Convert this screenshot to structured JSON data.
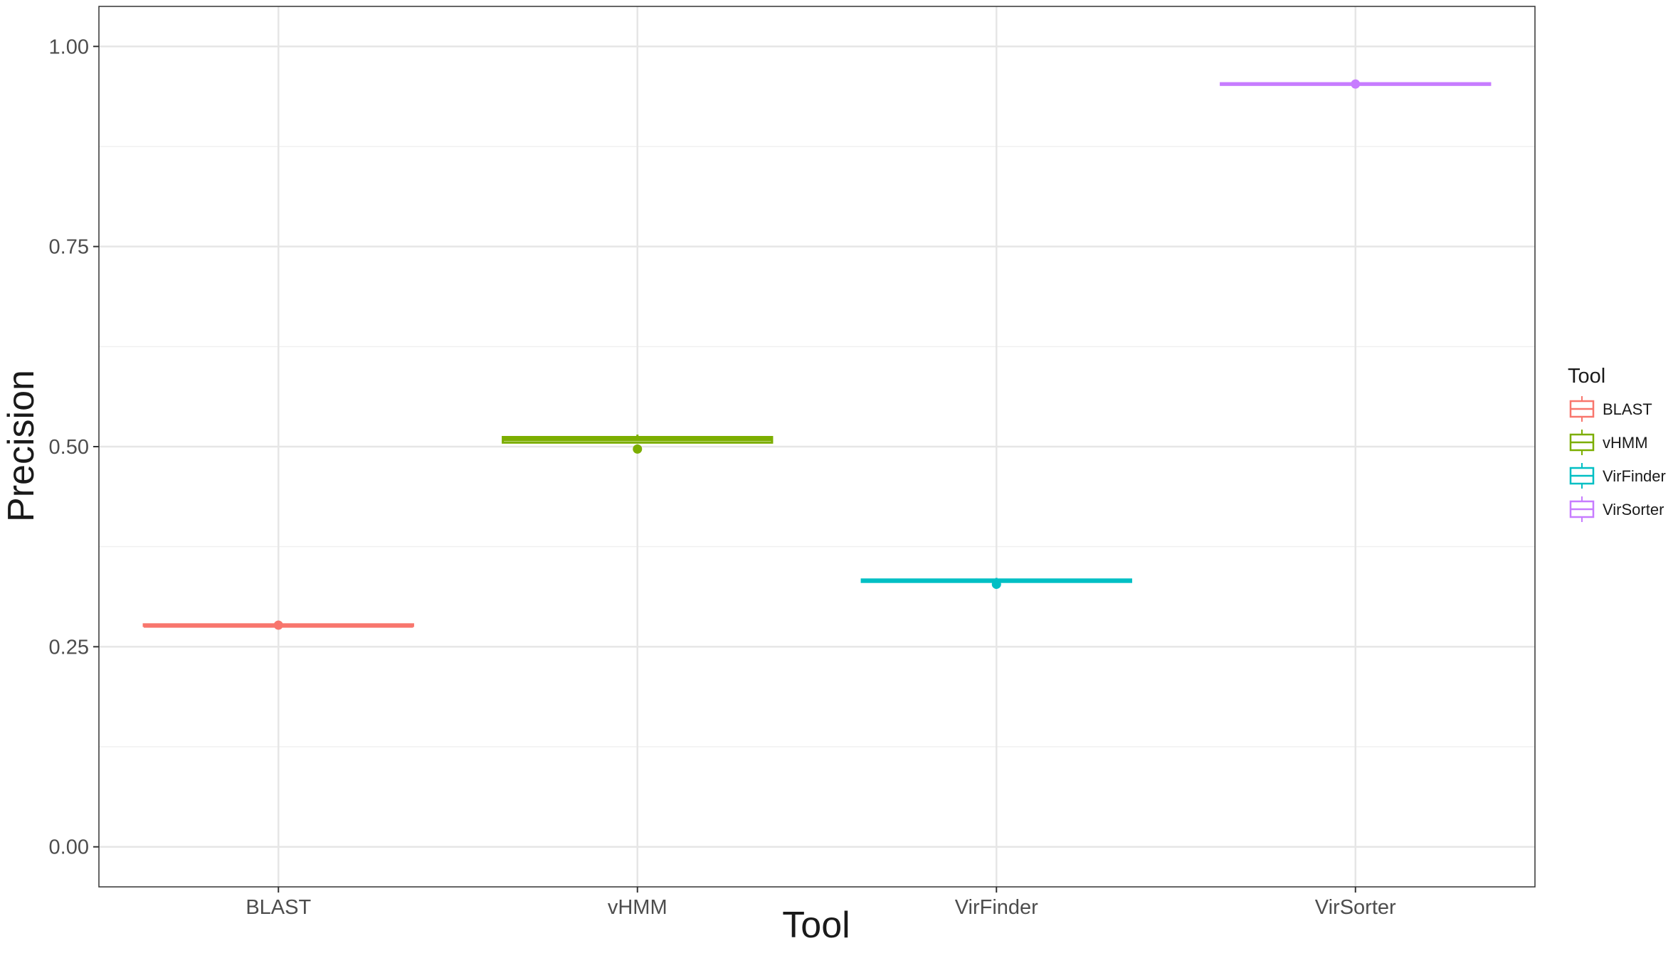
{
  "chart_data": {
    "type": "boxplot",
    "title": "",
    "xlabel": "Tool",
    "ylabel": "Precision",
    "categories": [
      "BLAST",
      "vHMM",
      "VirFinder",
      "VirSorter"
    ],
    "ylim": [
      -0.05,
      1.05
    ],
    "yticks": [
      0.0,
      0.25,
      0.5,
      0.75,
      1.0
    ],
    "ytick_labels": [
      "0.00",
      "0.25",
      "0.50",
      "0.75",
      "1.00"
    ],
    "grid": true,
    "series": [
      {
        "name": "BLAST",
        "color": "#F8766D",
        "q1": 0.276,
        "median": 0.276,
        "q3": 0.278,
        "whisker_low": 0.276,
        "whisker_high": 0.278,
        "mean": 0.277
      },
      {
        "name": "vHMM",
        "color": "#7CAE00",
        "q1": 0.505,
        "median": 0.509,
        "q3": 0.512,
        "whisker_low": 0.505,
        "whisker_high": 0.515,
        "mean": 0.497
      },
      {
        "name": "VirFinder",
        "color": "#00BFC4",
        "q1": 0.331,
        "median": 0.333,
        "q3": 0.334,
        "whisker_low": 0.331,
        "whisker_high": 0.336,
        "mean": 0.328
      },
      {
        "name": "VirSorter",
        "color": "#C77CFF",
        "q1": 0.952,
        "median": 0.953,
        "q3": 0.954,
        "whisker_low": 0.952,
        "whisker_high": 0.954,
        "mean": 0.953
      }
    ],
    "legend": {
      "title": "Tool",
      "position": "right",
      "entries": [
        "BLAST",
        "vHMM",
        "VirFinder",
        "VirSorter"
      ]
    }
  }
}
